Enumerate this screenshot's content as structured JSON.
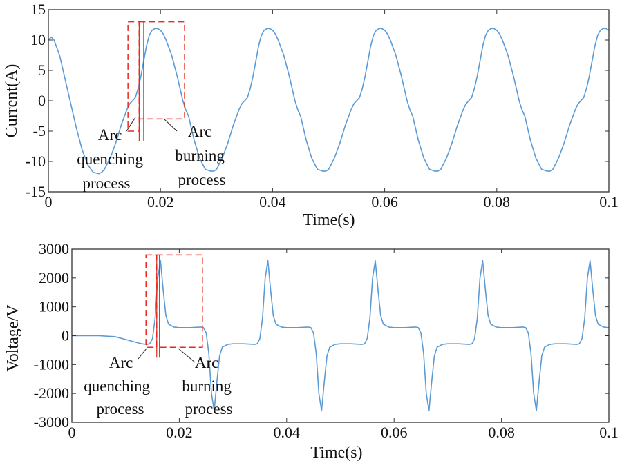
{
  "chart_data": [
    {
      "type": "line",
      "id": "current",
      "xlabel": "Time(s)",
      "ylabel": "Current(A)",
      "xlim": [
        0,
        0.1
      ],
      "ylim": [
        -15,
        15
      ],
      "xticks": [
        "0",
        "0.02",
        "0.04",
        "0.06",
        "0.08",
        "0.1"
      ],
      "yticks": [
        "-15",
        "-10",
        "-5",
        "0",
        "5",
        "10",
        "15"
      ],
      "line_color": "#5b9bd5",
      "box_color": "#e8291c",
      "series": [
        {
          "name": "current",
          "x": [
            0,
            0.0005,
            0.001,
            0.002,
            0.003,
            0.004,
            0.005,
            0.006,
            0.007,
            0.008,
            0.009,
            0.0095,
            0.01,
            0.011,
            0.012,
            0.013,
            0.014,
            0.0145,
            0.015,
            0.0155,
            0.016,
            0.0165,
            0.017,
            0.0175,
            0.018,
            0.0185,
            0.019,
            0.0195,
            0.02,
            0.0205,
            0.021,
            0.022,
            0.023,
            0.024,
            0.0245,
            0.025,
            0.0255,
            0.026,
            0.027,
            0.028,
            0.029,
            0.0295,
            0.03,
            0.031,
            0.032,
            0.033,
            0.034,
            0.0345,
            0.035,
            0.0355,
            0.036,
            0.0365,
            0.037,
            0.0375,
            0.038,
            0.0385,
            0.039,
            0.0395,
            0.04,
            0.0405,
            0.041,
            0.042,
            0.043,
            0.044,
            0.0445,
            0.045,
            0.0455,
            0.046,
            0.047,
            0.048,
            0.049,
            0.0495,
            0.05,
            0.051,
            0.052,
            0.053,
            0.054,
            0.0545,
            0.055,
            0.0555,
            0.056,
            0.0565,
            0.057,
            0.0575,
            0.058,
            0.0585,
            0.059,
            0.0595,
            0.06,
            0.0605,
            0.061,
            0.062,
            0.063,
            0.064,
            0.0645,
            0.065,
            0.0655,
            0.066,
            0.067,
            0.068,
            0.069,
            0.0695,
            0.07,
            0.071,
            0.072,
            0.073,
            0.074,
            0.0745,
            0.075,
            0.0755,
            0.076,
            0.0765,
            0.077,
            0.0775,
            0.078,
            0.0785,
            0.079,
            0.0795,
            0.08,
            0.0805,
            0.081,
            0.082,
            0.083,
            0.084,
            0.0845,
            0.085,
            0.0855,
            0.086,
            0.087,
            0.088,
            0.089,
            0.0895,
            0.09,
            0.091,
            0.092,
            0.093,
            0.094,
            0.0945,
            0.095,
            0.0955,
            0.096,
            0.0965,
            0.097,
            0.0975,
            0.098,
            0.0985,
            0.099,
            0.0995,
            0.1
          ],
          "y": [
            10,
            10.5,
            10,
            7.5,
            3.5,
            -0.5,
            -4.5,
            -8,
            -10.5,
            -11.8,
            -12,
            -11.8,
            -11.3,
            -9.5,
            -7,
            -4,
            -1.5,
            -0.5,
            0,
            0.5,
            2,
            4,
            6.5,
            9,
            10.8,
            11.6,
            11.9,
            11.9,
            11.6,
            11,
            10,
            7.5,
            4,
            0,
            -1.5,
            -2.5,
            -4.5,
            -6.5,
            -9.5,
            -11.3,
            -11.6,
            -11.6,
            -11.3,
            -9.5,
            -7,
            -4,
            -1.5,
            -0.5,
            0,
            0.5,
            2,
            4,
            6.5,
            9,
            10.8,
            11.6,
            11.9,
            11.9,
            11.6,
            11,
            10,
            7.5,
            4,
            0,
            -1.5,
            -2.5,
            -4.5,
            -6.5,
            -9.5,
            -11.3,
            -11.6,
            -11.6,
            -11.3,
            -9.5,
            -7,
            -4,
            -1.5,
            -0.5,
            0,
            0.5,
            2,
            4,
            6.5,
            9,
            10.8,
            11.6,
            11.9,
            11.9,
            11.6,
            11,
            10,
            7.5,
            4,
            0,
            -1.5,
            -2.5,
            -4.5,
            -6.5,
            -9.5,
            -11.3,
            -11.6,
            -11.6,
            -11.3,
            -9.5,
            -7,
            -4,
            -1.5,
            -0.5,
            0,
            0.5,
            2,
            4,
            6.5,
            9,
            10.8,
            11.6,
            11.9,
            11.9,
            11.6,
            11,
            10,
            7.5,
            4,
            0,
            -1.5,
            -2.5,
            -4.5,
            -6.5,
            -9.5,
            -11.3,
            -11.6,
            -11.6,
            -11.3,
            -9.5,
            -7,
            -4,
            -1.5,
            -0.5,
            0,
            0.5,
            2,
            4,
            6.5,
            9,
            10.8,
            11.6,
            11.9,
            11.9,
            11.6
          ]
        }
      ],
      "regions": [
        {
          "name": "quenching",
          "x": [
            0.0142,
            0.0162
          ],
          "y": [
            -5,
            13
          ]
        },
        {
          "name": "burning",
          "x": [
            0.0162,
            0.0243
          ],
          "y": [
            -3,
            13
          ]
        }
      ],
      "markers": [
        0.0162,
        0.017
      ],
      "annotations": {
        "quenching": [
          "Arc",
          "quenching",
          "process"
        ],
        "burning": [
          "Arc",
          "burning",
          "process"
        ]
      }
    },
    {
      "type": "line",
      "id": "voltage",
      "xlabel": "Time(s)",
      "ylabel": "Voltage/V",
      "xlim": [
        0,
        0.1
      ],
      "ylim": [
        -3000,
        3000
      ],
      "xticks": [
        "0",
        "0.02",
        "0.04",
        "0.06",
        "0.08",
        "0.1"
      ],
      "yticks": [
        "-3000",
        "-2000",
        "-1000",
        "0",
        "1000",
        "2000",
        "3000"
      ],
      "line_color": "#5b9bd5",
      "box_color": "#e8291c",
      "series": [
        {
          "name": "voltage",
          "x": [
            0,
            0.005,
            0.008,
            0.01,
            0.012,
            0.013,
            0.014,
            0.0145,
            0.015,
            0.0155,
            0.016,
            0.0165,
            0.017,
            0.0175,
            0.018,
            0.019,
            0.02,
            0.022,
            0.024,
            0.0245,
            0.025,
            0.0255,
            0.026,
            0.0265,
            0.027,
            0.0275,
            0.028,
            0.029,
            0.03,
            0.032,
            0.034,
            0.0345,
            0.035,
            0.0355,
            0.036,
            0.0365,
            0.037,
            0.0375,
            0.038,
            0.039,
            0.04,
            0.042,
            0.044,
            0.0445,
            0.045,
            0.0455,
            0.046,
            0.0465,
            0.047,
            0.0475,
            0.048,
            0.049,
            0.05,
            0.052,
            0.054,
            0.0545,
            0.055,
            0.0555,
            0.056,
            0.0565,
            0.057,
            0.0575,
            0.058,
            0.059,
            0.06,
            0.062,
            0.064,
            0.0645,
            0.065,
            0.0655,
            0.066,
            0.0665,
            0.067,
            0.0675,
            0.068,
            0.069,
            0.07,
            0.072,
            0.074,
            0.0745,
            0.075,
            0.0755,
            0.076,
            0.0765,
            0.077,
            0.0775,
            0.078,
            0.079,
            0.08,
            0.082,
            0.084,
            0.0845,
            0.085,
            0.0855,
            0.086,
            0.0865,
            0.087,
            0.0875,
            0.088,
            0.089,
            0.09,
            0.092,
            0.094,
            0.0945,
            0.095,
            0.0955,
            0.096,
            0.0965,
            0.097,
            0.0975,
            0.098,
            0.099,
            0.1
          ],
          "y": [
            0,
            0,
            -30,
            -130,
            -230,
            -280,
            -300,
            -280,
            -100,
            600,
            2000,
            2600,
            1600,
            700,
            400,
            300,
            280,
            280,
            300,
            280,
            100,
            -600,
            -2000,
            -2600,
            -1600,
            -700,
            -400,
            -300,
            -280,
            -280,
            -300,
            -280,
            -100,
            600,
            2000,
            2600,
            1600,
            700,
            400,
            300,
            280,
            280,
            300,
            280,
            100,
            -600,
            -2000,
            -2600,
            -1600,
            -700,
            -400,
            -300,
            -280,
            -280,
            -300,
            -280,
            -100,
            600,
            2000,
            2600,
            1600,
            700,
            400,
            300,
            280,
            280,
            300,
            280,
            100,
            -600,
            -2000,
            -2600,
            -1600,
            -700,
            -400,
            -300,
            -280,
            -280,
            -300,
            -280,
            -100,
            600,
            2000,
            2600,
            1600,
            700,
            400,
            300,
            280,
            280,
            300,
            280,
            100,
            -600,
            -2000,
            -2600,
            -1600,
            -700,
            -400,
            -300,
            -280,
            -280,
            -300,
            -280,
            -100,
            600,
            2000,
            2600,
            1600,
            700,
            400,
            300,
            280
          ]
        }
      ],
      "regions": [
        {
          "name": "quenching",
          "x": [
            0.0138,
            0.0158
          ],
          "y": [
            -400,
            2800
          ]
        },
        {
          "name": "burning",
          "x": [
            0.0158,
            0.0243
          ],
          "y": [
            -400,
            2800
          ]
        }
      ],
      "markers": [
        0.0158,
        0.0163
      ],
      "annotations": {
        "quenching": [
          "Arc",
          "quenching",
          "process"
        ],
        "burning": [
          "Arc",
          "burning",
          "process"
        ]
      }
    }
  ]
}
